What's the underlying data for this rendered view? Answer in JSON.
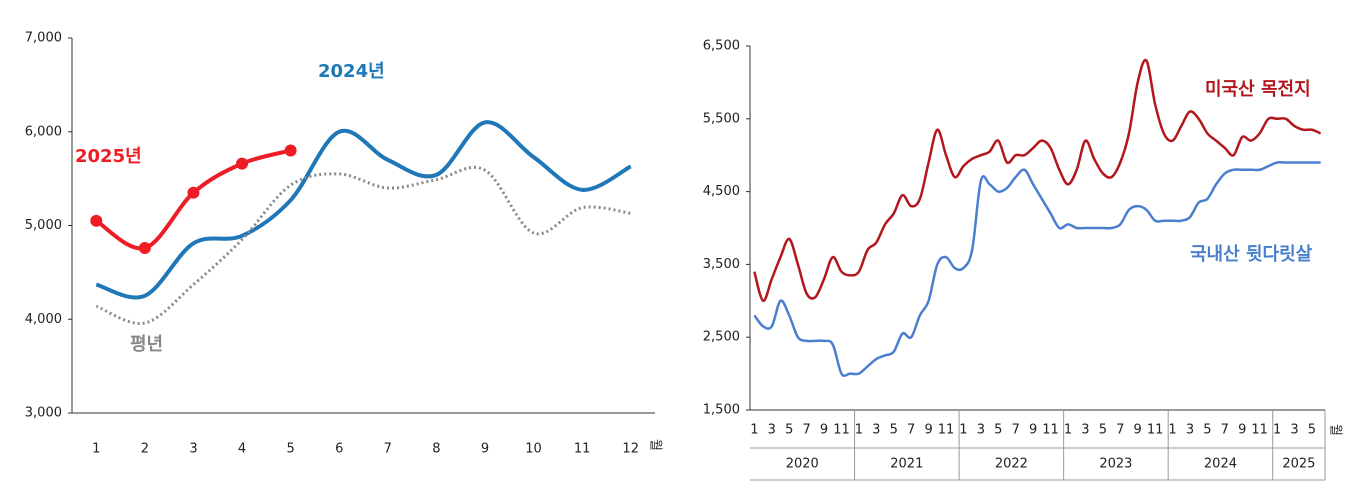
{
  "chart_data": [
    {
      "type": "line",
      "categories": [
        "1",
        "2",
        "3",
        "4",
        "5",
        "6",
        "7",
        "8",
        "9",
        "10",
        "11",
        "12"
      ],
      "x_unit": "월",
      "ylim": [
        3000,
        7000
      ],
      "yticks": [
        {
          "value": 3000,
          "label": "3,000"
        },
        {
          "value": 4000,
          "label": "4,000"
        },
        {
          "value": 5000,
          "label": "5,000"
        },
        {
          "value": 6000,
          "label": "6,000"
        },
        {
          "value": 7000,
          "label": "7,000"
        }
      ],
      "series": [
        {
          "name": "2025년",
          "color": "#ee1c25",
          "style": "solid",
          "markers": true,
          "values": [
            5050,
            4760,
            5350,
            5660,
            5800,
            null,
            null,
            null,
            null,
            null,
            null,
            null
          ]
        },
        {
          "name": "2024년",
          "color": "#1f77b8",
          "style": "solid",
          "markers": false,
          "values": [
            4370,
            4250,
            4810,
            4890,
            5270,
            6000,
            5700,
            5540,
            6100,
            5730,
            5380,
            5630
          ]
        },
        {
          "name": "평년",
          "color": "#888888",
          "style": "dotted",
          "markers": false,
          "values": [
            4140,
            3960,
            4370,
            4850,
            5430,
            5550,
            5400,
            5490,
            5590,
            4920,
            5190,
            5130
          ]
        }
      ]
    },
    {
      "type": "line",
      "x_unit": "월",
      "years": [
        {
          "label": "2020",
          "months": [
            "1",
            null,
            "3",
            null,
            "5",
            null,
            "7",
            null,
            "9",
            null,
            "11",
            null
          ]
        },
        {
          "label": "2021",
          "months": [
            "1",
            null,
            "3",
            null,
            "5",
            null,
            "7",
            null,
            "9",
            null,
            "11",
            null
          ]
        },
        {
          "label": "2022",
          "months": [
            "1",
            null,
            "3",
            null,
            "5",
            null,
            "7",
            null,
            "9",
            null,
            "11",
            null
          ]
        },
        {
          "label": "2023",
          "months": [
            "1",
            null,
            "3",
            null,
            "5",
            null,
            "7",
            null,
            "9",
            null,
            "11",
            null
          ]
        },
        {
          "label": "2024",
          "months": [
            "1",
            null,
            "3",
            null,
            "5",
            null,
            "7",
            null,
            "9",
            null,
            "11",
            null
          ]
        },
        {
          "label": "2025",
          "months": [
            "1",
            null,
            "3",
            null,
            "5",
            null
          ]
        }
      ],
      "ylim": [
        1500,
        6500
      ],
      "yticks": [
        {
          "value": 1500,
          "label": "1,500"
        },
        {
          "value": 2500,
          "label": "2,500"
        },
        {
          "value": 3500,
          "label": "3,500"
        },
        {
          "value": 4500,
          "label": "4,500"
        },
        {
          "value": 5500,
          "label": "5,500"
        },
        {
          "value": 6500,
          "label": "6,500"
        }
      ],
      "series": [
        {
          "name": "미국산 목전지",
          "color": "#b3161c",
          "style": "solid",
          "markers": false,
          "values": [
            3400,
            3000,
            3300,
            3600,
            3850,
            3500,
            3100,
            3050,
            3300,
            3600,
            3400,
            3350,
            3400,
            3700,
            3800,
            4050,
            4200,
            4450,
            4300,
            4400,
            4900,
            5350,
            5000,
            4700,
            4850,
            4950,
            5000,
            5050,
            5200,
            4900,
            5000,
            5000,
            5100,
            5200,
            5100,
            4800,
            4600,
            4800,
            5200,
            4950,
            4750,
            4700,
            4900,
            5300,
            6000,
            6300,
            5700,
            5300,
            5200,
            5400,
            5600,
            5500,
            5300,
            5200,
            5100,
            5000,
            5250,
            5200,
            5300,
            5500,
            5500,
            5500,
            5400,
            5350,
            5350,
            5300
          ]
        },
        {
          "name": "국내산 뒷다릿살",
          "color": "#4a7fcf",
          "style": "solid",
          "markers": false,
          "values": [
            2800,
            2650,
            2650,
            3000,
            2800,
            2500,
            2450,
            2450,
            2450,
            2400,
            2000,
            2000,
            2000,
            2100,
            2200,
            2250,
            2300,
            2550,
            2500,
            2800,
            3000,
            3500,
            3600,
            3450,
            3450,
            3700,
            4650,
            4600,
            4500,
            4550,
            4700,
            4800,
            4600,
            4400,
            4200,
            4000,
            4050,
            4000,
            4000,
            4000,
            4000,
            4000,
            4050,
            4250,
            4300,
            4250,
            4100,
            4100,
            4100,
            4100,
            4150,
            4350,
            4400,
            4600,
            4750,
            4800,
            4800,
            4800,
            4800,
            4850,
            4900,
            4900,
            4900,
            4900,
            4900,
            4900
          ]
        }
      ]
    }
  ]
}
